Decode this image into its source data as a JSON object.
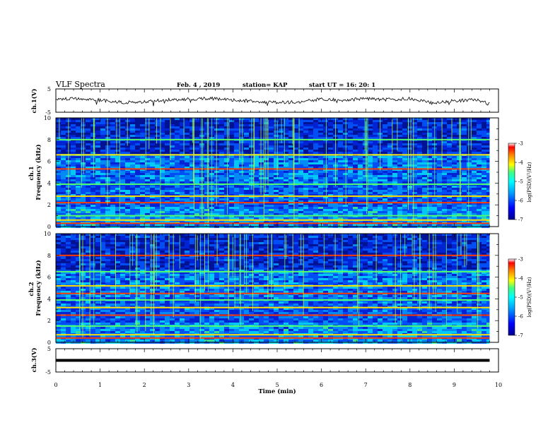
{
  "header": {
    "title": "VLF Spectra",
    "date": "Feb. 4  , 2019",
    "station": "station= KAP",
    "start": "start  UT  =    16: 20: 1"
  },
  "axes": {
    "xlabel": "Time  (min)",
    "ch1_label": "ch.1(V)",
    "ch3_label": "ch.3(V)",
    "spec1_label": "ch.1\nFrequency  (kHz)",
    "spec2_label": "ch.2\nFrequency  (kHz)",
    "colorbar_label": "log(PSD)(V²/Hz)"
  },
  "colors": {
    "spectrum_low": "#00008f",
    "spectrum_mid": "#00e6ff",
    "spectrum_high": "#ff0000",
    "trace": "#000000"
  },
  "chart_data": [
    {
      "type": "line",
      "name": "ch1-timeseries",
      "xlim": [
        0,
        10
      ],
      "ylim": [
        -5,
        5
      ],
      "xticks": [
        "0",
        "1",
        "2",
        "3",
        "4",
        "5",
        "6",
        "7",
        "8",
        "9",
        "10"
      ],
      "yticks": [
        "5",
        "-5"
      ],
      "ylabel": "ch.1(V)",
      "x": [
        0,
        0.5,
        1,
        1.5,
        2,
        2.5,
        3,
        3.5,
        4,
        4.5,
        5,
        5.5,
        6,
        6.5,
        7,
        7.5,
        8,
        8.5,
        9,
        9.5,
        9.8
      ],
      "values": [
        0.5,
        0.8,
        0.2,
        -0.8,
        -0.6,
        0.3,
        0.6,
        1.0,
        0.2,
        -0.4,
        -0.8,
        -0.6,
        0.6,
        0.2,
        0.9,
        0.4,
        0.8,
        -1.0,
        -0.1,
        0.4,
        -1.5
      ]
    },
    {
      "type": "heatmap",
      "name": "ch1-spectrogram",
      "xlim": [
        0,
        10
      ],
      "ylim": [
        0,
        10
      ],
      "yticks": [
        "0",
        "2",
        "4",
        "6",
        "8",
        "10"
      ],
      "ylabel": "ch.1 Frequency (kHz)",
      "data_end_min": 9.8,
      "colorbar": {
        "range": [
          -7,
          -3
        ],
        "ticks": [
          "-3",
          "-4",
          "-5",
          "-6",
          "-7"
        ],
        "label": "log(PSD)(V²/Hz)"
      },
      "bright_lines_khz": [
        0.3,
        0.6,
        1.0,
        2.2,
        2.8,
        3.9,
        5.3,
        6.6,
        8.0
      ]
    },
    {
      "type": "heatmap",
      "name": "ch2-spectrogram",
      "xlim": [
        0,
        10
      ],
      "ylim": [
        0,
        10
      ],
      "yticks": [
        "0",
        "2",
        "4",
        "6",
        "8",
        "10"
      ],
      "ylabel": "ch.2 Frequency (kHz)",
      "data_end_min": 9.8,
      "colorbar": {
        "range": [
          -7,
          -3
        ],
        "ticks": [
          "-3",
          "-4",
          "-5",
          "-6",
          "-7"
        ],
        "label": "log(PSD)(V²/Hz)"
      },
      "bright_lines_khz": [
        0.4,
        0.7,
        1.5,
        2.5,
        3.2,
        3.9,
        4.5,
        5.2,
        6.5,
        8.0
      ]
    },
    {
      "type": "line",
      "name": "ch3-timeseries",
      "xlim": [
        0,
        10
      ],
      "ylim": [
        -5,
        5
      ],
      "xticks": [
        "0",
        "1",
        "2",
        "3",
        "4",
        "5",
        "6",
        "7",
        "8",
        "9",
        "10"
      ],
      "yticks": [
        "5",
        "-5"
      ],
      "ylabel": "ch.3(V)",
      "x": [
        0,
        9.8
      ],
      "values": [
        0,
        0
      ]
    }
  ]
}
